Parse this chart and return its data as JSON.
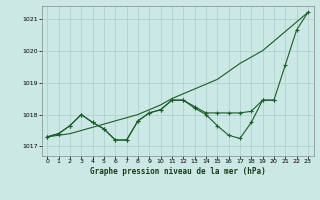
{
  "background_color": "#cce8e4",
  "grid_color": "#aacfcb",
  "line_color": "#1a5c2a",
  "title": "Graphe pression niveau de la mer (hPa)",
  "xlim_min": -0.5,
  "xlim_max": 23.5,
  "ylim_min": 1016.7,
  "ylim_max": 1021.4,
  "yticks": [
    1017,
    1018,
    1019,
    1020,
    1021
  ],
  "xticks": [
    0,
    1,
    2,
    3,
    4,
    5,
    6,
    7,
    8,
    9,
    10,
    11,
    12,
    13,
    14,
    15,
    16,
    17,
    18,
    19,
    20,
    21,
    22,
    23
  ],
  "series1_x": [
    0,
    1,
    2,
    3,
    4,
    5,
    6,
    7,
    8,
    9,
    10,
    11,
    12,
    13,
    14,
    15,
    16,
    17,
    18,
    19,
    20,
    21,
    22,
    23
  ],
  "series1_y": [
    1017.3,
    1017.35,
    1017.4,
    1017.5,
    1017.6,
    1017.7,
    1017.8,
    1017.9,
    1018.0,
    1018.15,
    1018.3,
    1018.5,
    1018.65,
    1018.8,
    1018.95,
    1019.1,
    1019.35,
    1019.6,
    1019.8,
    1020.0,
    1020.3,
    1020.6,
    1020.9,
    1021.2
  ],
  "series2_x": [
    0,
    1,
    2,
    3,
    4,
    5,
    6,
    7,
    8,
    9,
    10,
    11,
    12,
    13,
    14,
    15,
    16,
    17,
    18,
    19,
    20,
    21,
    22,
    23
  ],
  "series2_y": [
    1017.3,
    1017.4,
    1017.65,
    1018.0,
    1017.75,
    1017.55,
    1017.2,
    1017.2,
    1017.8,
    1018.05,
    1018.15,
    1018.45,
    1018.45,
    1018.2,
    1018.0,
    1017.65,
    1017.35,
    1017.25,
    1017.75,
    1018.45,
    1018.45,
    1019.55,
    1020.65,
    1021.2
  ],
  "series3_x": [
    0,
    1,
    2,
    3,
    4,
    5,
    6,
    7,
    8,
    9,
    10,
    11,
    12,
    13,
    14,
    15,
    16,
    17,
    18,
    19,
    20
  ],
  "series3_y": [
    1017.3,
    1017.4,
    1017.65,
    1018.0,
    1017.75,
    1017.55,
    1017.2,
    1017.2,
    1017.8,
    1018.05,
    1018.15,
    1018.45,
    1018.45,
    1018.25,
    1018.05,
    1018.05,
    1018.05,
    1018.05,
    1018.1,
    1018.45,
    1018.45
  ]
}
